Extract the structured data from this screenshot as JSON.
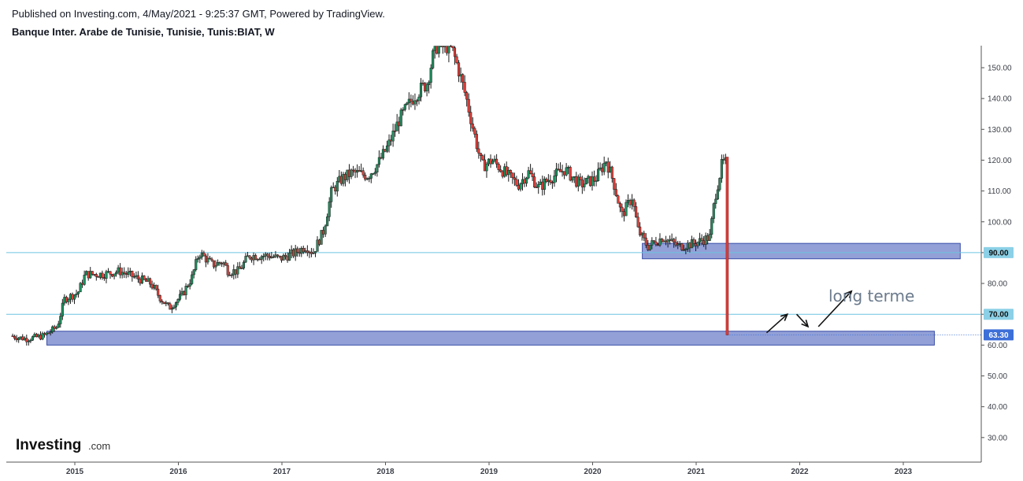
{
  "header": {
    "published": "Published on Investing.com, 4/May/2021 - 9:25:37 GMT, Powered by TradingView.",
    "symbol": "Banque Inter. Arabe de Tunisie, Tunisie, Tunis:BIAT, W"
  },
  "logo": {
    "main": "Investing",
    "suffix": ".com"
  },
  "colors": {
    "up": "#26a69a",
    "upBody": "#1e8f5e",
    "down": "#e0403a",
    "wick": "#1a1a1a",
    "zone": "#7f8fd0",
    "zoneBorder": "#3b4ea8",
    "hline": "#6cc4e0",
    "badgeLine": "#8bd0e6",
    "badgeCurrent": "#3d6fd8"
  },
  "annotations": {
    "text": "long terme"
  },
  "chart_data": {
    "type": "candlestick",
    "y_axis": {
      "min": 22,
      "max": 157,
      "ticks": [
        "30.00",
        "40.00",
        "50.00",
        "60.00",
        "70.00",
        "80.00",
        "90.00",
        "100.00",
        "110.00",
        "120.00",
        "130.00",
        "140.00",
        "150.00"
      ]
    },
    "x_axis": {
      "start": 2014.4,
      "end": 2023.7,
      "ticks": [
        "2015",
        "2016",
        "2017",
        "2018",
        "2019",
        "2020",
        "2021",
        "2022",
        "2023"
      ]
    },
    "horizontal_lines": [
      90,
      70
    ],
    "price_badges": [
      {
        "label": "90.00",
        "value": 90,
        "style": "line"
      },
      {
        "label": "70.00",
        "value": 70,
        "style": "line"
      },
      {
        "label": "63.30",
        "value": 63.3,
        "style": "current"
      }
    ],
    "zones": [
      {
        "x_start": 2020.48,
        "x_end": 2023.55,
        "y_low": 88,
        "y_high": 93
      },
      {
        "x_start": 2014.73,
        "x_end": 2023.3,
        "y_low": 60,
        "y_high": 64.5
      }
    ],
    "price_path": [
      [
        2014.4,
        63
      ],
      [
        2014.55,
        62
      ],
      [
        2014.72,
        63
      ],
      [
        2014.85,
        66
      ],
      [
        2014.92,
        75
      ],
      [
        2015.05,
        77
      ],
      [
        2015.12,
        83
      ],
      [
        2015.3,
        83
      ],
      [
        2015.45,
        84
      ],
      [
        2015.6,
        82
      ],
      [
        2015.75,
        80
      ],
      [
        2015.85,
        75
      ],
      [
        2015.93,
        72
      ],
      [
        2016.05,
        76
      ],
      [
        2016.15,
        82
      ],
      [
        2016.22,
        90
      ],
      [
        2016.35,
        86
      ],
      [
        2016.45,
        87
      ],
      [
        2016.5,
        84
      ],
      [
        2016.6,
        84
      ],
      [
        2016.7,
        89
      ],
      [
        2016.9,
        89
      ],
      [
        2017.0,
        88
      ],
      [
        2017.15,
        90
      ],
      [
        2017.25,
        92
      ],
      [
        2017.32,
        90
      ],
      [
        2017.42,
        97
      ],
      [
        2017.5,
        110
      ],
      [
        2017.6,
        114
      ],
      [
        2017.7,
        116
      ],
      [
        2017.85,
        115
      ],
      [
        2017.95,
        119
      ],
      [
        2018.05,
        125
      ],
      [
        2018.15,
        133
      ],
      [
        2018.3,
        141
      ],
      [
        2018.42,
        145
      ],
      [
        2018.5,
        157
      ],
      [
        2018.65,
        157
      ],
      [
        2018.72,
        150
      ],
      [
        2018.8,
        140
      ],
      [
        2018.88,
        128
      ],
      [
        2018.95,
        118
      ],
      [
        2019.05,
        120
      ],
      [
        2019.2,
        115
      ],
      [
        2019.3,
        112
      ],
      [
        2019.4,
        116
      ],
      [
        2019.5,
        111
      ],
      [
        2019.6,
        114
      ],
      [
        2019.75,
        117
      ],
      [
        2019.9,
        112
      ],
      [
        2020.05,
        114
      ],
      [
        2020.15,
        120
      ],
      [
        2020.22,
        113
      ],
      [
        2020.3,
        102
      ],
      [
        2020.4,
        108
      ],
      [
        2020.46,
        97
      ],
      [
        2020.55,
        92
      ],
      [
        2020.7,
        95
      ],
      [
        2020.85,
        92
      ],
      [
        2021.0,
        93
      ],
      [
        2021.15,
        95
      ],
      [
        2021.2,
        108
      ],
      [
        2021.27,
        119
      ],
      [
        2021.3,
        119
      ]
    ],
    "crash": {
      "x": 2021.3,
      "from": 121,
      "to": 63.3
    },
    "arrows": [
      {
        "from": [
          2021.68,
          64
        ],
        "to": [
          2021.88,
          70
        ]
      },
      {
        "from": [
          2021.97,
          70
        ],
        "to": [
          2022.08,
          66
        ]
      },
      {
        "from": [
          2022.18,
          66
        ],
        "to": [
          2022.5,
          77.5
        ]
      }
    ]
  }
}
